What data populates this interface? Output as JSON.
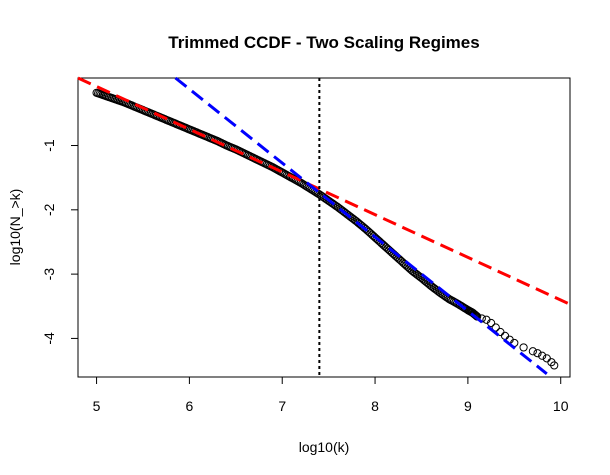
{
  "chart_data": {
    "type": "scatter",
    "title": "Trimmed CCDF - Two Scaling Regimes",
    "xlabel": "log10(k)",
    "ylabel": "log10(N_>k)",
    "xlim": [
      4.8,
      10.1
    ],
    "ylim": [
      -4.6,
      0.05
    ],
    "x_ticks": [
      5,
      6,
      7,
      8,
      9,
      10
    ],
    "y_ticks": [
      -1,
      -2,
      -3,
      -4
    ],
    "grid": false,
    "legend": "none",
    "series": [
      {
        "kind": "points",
        "marker": "open-circle",
        "color": "#000000",
        "x": [
          5.0,
          5.1,
          5.2,
          5.3,
          5.4,
          5.5,
          5.6,
          5.7,
          5.8,
          5.9,
          6.0,
          6.1,
          6.2,
          6.3,
          6.4,
          6.5,
          6.6,
          6.7,
          6.8,
          6.9,
          7.0,
          7.1,
          7.2,
          7.3,
          7.4,
          7.5,
          7.6,
          7.7,
          7.8,
          7.9,
          8.0,
          8.1,
          8.2,
          8.3,
          8.4,
          8.5,
          8.6,
          8.7,
          8.8,
          8.9,
          9.0,
          9.05,
          9.1,
          9.15,
          9.2,
          9.25,
          9.3,
          9.35,
          9.4,
          9.45,
          9.5,
          9.6,
          9.7,
          9.75,
          9.8,
          9.85,
          9.9,
          9.93
        ],
        "y": [
          -0.18,
          -0.23,
          -0.28,
          -0.33,
          -0.39,
          -0.45,
          -0.51,
          -0.57,
          -0.63,
          -0.69,
          -0.75,
          -0.81,
          -0.87,
          -0.93,
          -1.0,
          -1.06,
          -1.13,
          -1.2,
          -1.27,
          -1.34,
          -1.42,
          -1.5,
          -1.58,
          -1.67,
          -1.76,
          -1.86,
          -1.96,
          -2.07,
          -2.18,
          -2.3,
          -2.43,
          -2.56,
          -2.69,
          -2.82,
          -2.95,
          -3.06,
          -3.18,
          -3.29,
          -3.39,
          -3.47,
          -3.56,
          -3.6,
          -3.66,
          -3.69,
          -3.71,
          -3.76,
          -3.83,
          -3.9,
          -3.96,
          -4.02,
          -4.07,
          -4.14,
          -4.2,
          -4.23,
          -4.27,
          -4.31,
          -4.37,
          -4.42
        ]
      },
      {
        "kind": "line",
        "style": "dashed",
        "color": "#ff0000",
        "x": [
          4.8,
          10.1
        ],
        "y": [
          0.05,
          -3.47
        ]
      },
      {
        "kind": "line",
        "style": "dashed",
        "color": "#0000ff",
        "x": [
          5.85,
          9.85
        ],
        "y": [
          0.05,
          -4.55
        ]
      },
      {
        "kind": "vline",
        "style": "dotted",
        "color": "#000000",
        "x": 7.4
      }
    ]
  }
}
